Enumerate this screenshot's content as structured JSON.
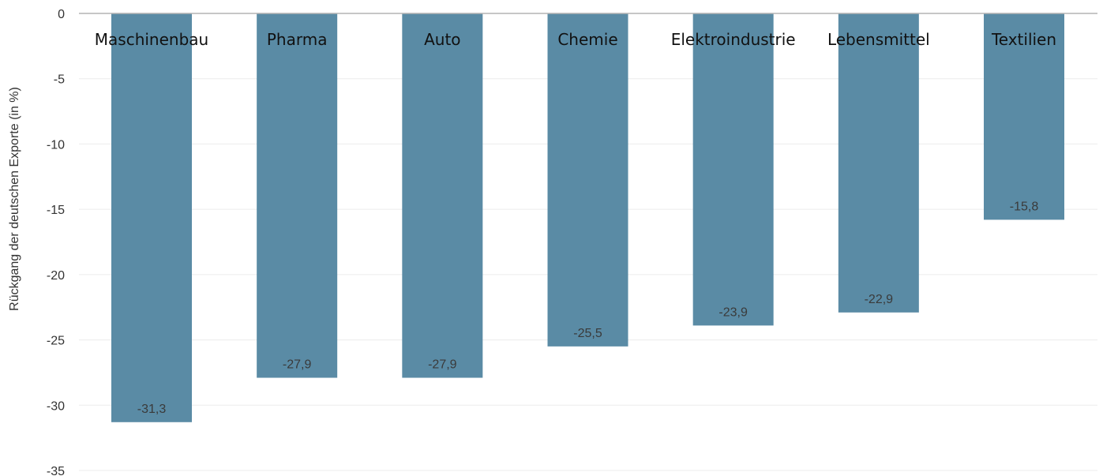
{
  "chart_data": {
    "type": "bar",
    "categories": [
      "Maschinenbau",
      "Pharma",
      "Auto",
      "Chemie",
      "Elektroindustrie",
      "Lebensmittel",
      "Textilien"
    ],
    "values": [
      -31.3,
      -27.9,
      -27.9,
      -25.5,
      -23.9,
      -22.9,
      -15.8
    ],
    "value_labels": [
      "-31,3",
      "-27,9",
      "-27,9",
      "-25,5",
      "-23,9",
      "-22,9",
      "-15,8"
    ],
    "ylabel": "Rückgang  der deutschen Exporte (in %)",
    "ylim": [
      -35,
      0
    ],
    "yticks": [
      0,
      -5,
      -10,
      -15,
      -20,
      -25,
      -30,
      -35
    ],
    "ytick_labels": [
      "0",
      "-5",
      "-10",
      "-15",
      "-20",
      "-25",
      "-30",
      "-35"
    ],
    "bar_color": "#5a8ba5",
    "grid": true,
    "legend": false
  }
}
